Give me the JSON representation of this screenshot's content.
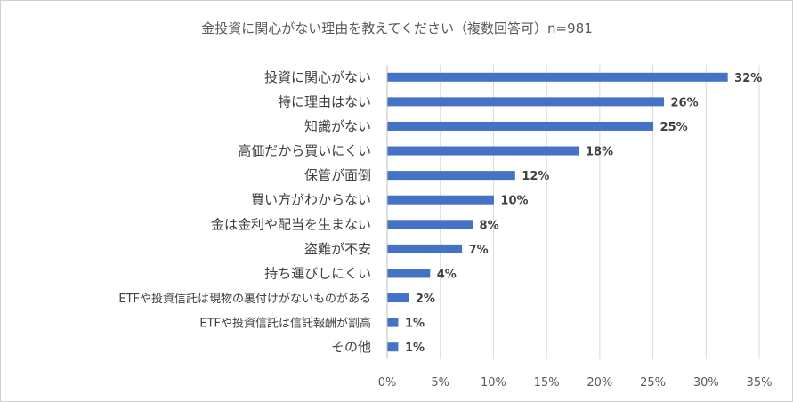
{
  "chart_data": {
    "type": "bar",
    "orientation": "horizontal",
    "title": "金投資に関心がない理由を教えてください（複数回答可）n=981",
    "categories": [
      "投資に関心がない",
      "特に理由はない",
      "知識がない",
      "高価だから買いにくい",
      "保管が面倒",
      "買い方がわからない",
      "金は金利や配当を生まない",
      "盗難が不安",
      "持ち運びしにくい",
      "ETFや投資信託は現物の裏付けがないものがある",
      "ETFや投資信託は信託報酬が割高",
      "その他"
    ],
    "values": [
      32,
      26,
      25,
      18,
      12,
      10,
      8,
      7,
      4,
      2,
      1,
      1
    ],
    "value_labels": [
      "32%",
      "26%",
      "25%",
      "18%",
      "12%",
      "10%",
      "8%",
      "7%",
      "4%",
      "2%",
      "1%",
      "1%"
    ],
    "xlim": [
      0,
      35
    ],
    "ticks": [
      0,
      5,
      10,
      15,
      20,
      25,
      30,
      35
    ],
    "tick_labels": [
      "0%",
      "5%",
      "10%",
      "15%",
      "20%",
      "25%",
      "30%",
      "35%"
    ],
    "xlabel": "",
    "ylabel": "",
    "grid": true,
    "series_color": "#4472c4"
  }
}
